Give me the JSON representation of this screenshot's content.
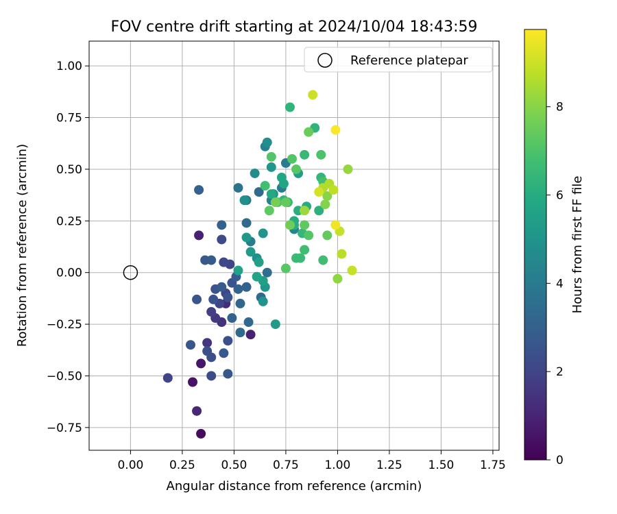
{
  "chart_data": {
    "type": "scatter",
    "title": "FOV centre drift starting at 2024/10/04 18:43:59",
    "xlabel": "Angular distance from reference (arcmin)",
    "ylabel": "Rotation from reference (arcmin)",
    "xlim": [
      -0.2,
      1.78
    ],
    "ylim": [
      -0.86,
      1.12
    ],
    "xticks": [
      0.0,
      0.25,
      0.5,
      0.75,
      1.0,
      1.25,
      1.5,
      1.75
    ],
    "xtick_labels": [
      "0.00",
      "0.25",
      "0.50",
      "0.75",
      "1.00",
      "1.25",
      "1.50",
      "1.75"
    ],
    "yticks": [
      -0.75,
      -0.5,
      -0.25,
      0.0,
      0.25,
      0.5,
      0.75,
      1.0
    ],
    "ytick_labels": [
      "−0.75",
      "−0.50",
      "−0.25",
      "0.00",
      "0.25",
      "0.50",
      "0.75",
      "1.00"
    ],
    "grid": true,
    "legend_position": "top-right",
    "legend_label": "Reference platepar",
    "reference_point": {
      "x": 0.0,
      "y": 0.0
    },
    "colorbar": {
      "label": "Hours from first FF file",
      "colormap": "viridis",
      "range": [
        0,
        9.75
      ],
      "ticks": [
        0,
        2,
        4,
        6,
        8
      ],
      "tick_labels": [
        "0",
        "2",
        "4",
        "6",
        "8"
      ]
    },
    "points": [
      {
        "x": 0.34,
        "y": -0.78,
        "c": 0.3
      },
      {
        "x": 0.3,
        "y": -0.53,
        "c": 0.5
      },
      {
        "x": 0.34,
        "y": -0.44,
        "c": 0.6
      },
      {
        "x": 0.33,
        "y": 0.18,
        "c": 0.9
      },
      {
        "x": 0.58,
        "y": -0.3,
        "c": 0.9
      },
      {
        "x": 0.32,
        "y": -0.67,
        "c": 1.1
      },
      {
        "x": 0.46,
        "y": -0.15,
        "c": 1.2
      },
      {
        "x": 0.44,
        "y": -0.24,
        "c": 1.4
      },
      {
        "x": 0.37,
        "y": -0.34,
        "c": 1.5
      },
      {
        "x": 0.41,
        "y": -0.22,
        "c": 1.6
      },
      {
        "x": 0.39,
        "y": -0.19,
        "c": 1.8
      },
      {
        "x": 0.18,
        "y": -0.51,
        "c": 2.0
      },
      {
        "x": 0.43,
        "y": -0.15,
        "c": 2.0
      },
      {
        "x": 0.46,
        "y": -0.1,
        "c": 2.0
      },
      {
        "x": 0.48,
        "y": 0.04,
        "c": 2.0
      },
      {
        "x": 0.45,
        "y": 0.05,
        "c": 2.1
      },
      {
        "x": 0.44,
        "y": 0.16,
        "c": 2.2
      },
      {
        "x": 0.39,
        "y": -0.5,
        "c": 2.2
      },
      {
        "x": 0.39,
        "y": -0.41,
        "c": 2.3
      },
      {
        "x": 0.37,
        "y": -0.38,
        "c": 2.4
      },
      {
        "x": 0.47,
        "y": -0.33,
        "c": 2.4
      },
      {
        "x": 0.4,
        "y": -0.13,
        "c": 2.5
      },
      {
        "x": 0.41,
        "y": -0.08,
        "c": 2.5
      },
      {
        "x": 0.47,
        "y": -0.12,
        "c": 2.5
      },
      {
        "x": 0.49,
        "y": -0.05,
        "c": 2.5
      },
      {
        "x": 0.29,
        "y": -0.35,
        "c": 2.6
      },
      {
        "x": 0.32,
        "y": -0.13,
        "c": 2.6
      },
      {
        "x": 0.47,
        "y": -0.49,
        "c": 2.6
      },
      {
        "x": 0.45,
        "y": -0.39,
        "c": 2.7
      },
      {
        "x": 0.36,
        "y": 0.06,
        "c": 2.7
      },
      {
        "x": 0.39,
        "y": 0.06,
        "c": 2.8
      },
      {
        "x": 0.44,
        "y": -0.07,
        "c": 2.8
      },
      {
        "x": 0.51,
        "y": -0.02,
        "c": 2.9
      },
      {
        "x": 0.33,
        "y": 0.4,
        "c": 3.0
      },
      {
        "x": 0.44,
        "y": 0.23,
        "c": 3.0
      },
      {
        "x": 0.49,
        "y": -0.22,
        "c": 3.0
      },
      {
        "x": 0.52,
        "y": -0.08,
        "c": 3.1
      },
      {
        "x": 0.56,
        "y": -0.07,
        "c": 3.1
      },
      {
        "x": 0.53,
        "y": -0.15,
        "c": 3.2
      },
      {
        "x": 0.53,
        "y": -0.29,
        "c": 3.3
      },
      {
        "x": 0.57,
        "y": -0.24,
        "c": 3.3
      },
      {
        "x": 0.63,
        "y": -0.12,
        "c": 3.3
      },
      {
        "x": 0.56,
        "y": 0.24,
        "c": 3.4
      },
      {
        "x": 0.62,
        "y": 0.39,
        "c": 3.4
      },
      {
        "x": 0.66,
        "y": 0.0,
        "c": 3.5
      },
      {
        "x": 0.52,
        "y": 0.41,
        "c": 3.7
      },
      {
        "x": 0.56,
        "y": 0.35,
        "c": 3.9
      },
      {
        "x": 0.58,
        "y": 0.15,
        "c": 4.0
      },
      {
        "x": 0.75,
        "y": 0.53,
        "c": 4.0
      },
      {
        "x": 0.73,
        "y": 0.41,
        "c": 4.0
      },
      {
        "x": 0.65,
        "y": 0.61,
        "c": 4.3
      },
      {
        "x": 0.68,
        "y": 0.35,
        "c": 4.3
      },
      {
        "x": 0.79,
        "y": 0.21,
        "c": 4.4
      },
      {
        "x": 0.6,
        "y": 0.48,
        "c": 4.7
      },
      {
        "x": 0.55,
        "y": 0.35,
        "c": 4.8
      },
      {
        "x": 0.61,
        "y": 0.07,
        "c": 4.8
      },
      {
        "x": 0.66,
        "y": 0.63,
        "c": 4.8
      },
      {
        "x": 0.69,
        "y": 0.38,
        "c": 4.9
      },
      {
        "x": 0.64,
        "y": 0.19,
        "c": 5.0
      },
      {
        "x": 0.64,
        "y": -0.14,
        "c": 5.0
      },
      {
        "x": 0.65,
        "y": -0.07,
        "c": 5.1
      },
      {
        "x": 0.68,
        "y": 0.51,
        "c": 5.1
      },
      {
        "x": 0.56,
        "y": 0.17,
        "c": 5.2
      },
      {
        "x": 0.58,
        "y": 0.1,
        "c": 5.3
      },
      {
        "x": 0.7,
        "y": -0.25,
        "c": 5.3
      },
      {
        "x": 0.81,
        "y": 0.48,
        "c": 5.4
      },
      {
        "x": 0.62,
        "y": 0.05,
        "c": 5.5
      },
      {
        "x": 0.64,
        "y": -0.04,
        "c": 5.5
      },
      {
        "x": 0.61,
        "y": -0.02,
        "c": 5.6
      },
      {
        "x": 0.52,
        "y": 0.01,
        "c": 5.6
      },
      {
        "x": 0.74,
        "y": 0.43,
        "c": 5.7
      },
      {
        "x": 0.73,
        "y": 0.46,
        "c": 5.8
      },
      {
        "x": 0.68,
        "y": 0.38,
        "c": 5.9
      },
      {
        "x": 0.79,
        "y": 0.25,
        "c": 6.0
      },
      {
        "x": 0.85,
        "y": 0.32,
        "c": 6.0
      },
      {
        "x": 0.79,
        "y": 0.23,
        "c": 6.1
      },
      {
        "x": 0.81,
        "y": 0.3,
        "c": 6.1
      },
      {
        "x": 0.91,
        "y": 0.3,
        "c": 6.2
      },
      {
        "x": 0.74,
        "y": 0.35,
        "c": 6.3
      },
      {
        "x": 0.77,
        "y": 0.8,
        "c": 6.3
      },
      {
        "x": 0.89,
        "y": 0.7,
        "c": 6.3
      },
      {
        "x": 0.92,
        "y": 0.46,
        "c": 6.4
      },
      {
        "x": 0.83,
        "y": 0.19,
        "c": 6.4
      },
      {
        "x": 0.84,
        "y": 0.57,
        "c": 6.5
      },
      {
        "x": 0.76,
        "y": 0.34,
        "c": 6.5
      },
      {
        "x": 0.8,
        "y": 0.07,
        "c": 6.6
      },
      {
        "x": 0.82,
        "y": 0.07,
        "c": 6.6
      },
      {
        "x": 0.84,
        "y": 0.11,
        "c": 6.7
      },
      {
        "x": 0.93,
        "y": 0.06,
        "c": 6.7
      },
      {
        "x": 0.93,
        "y": 0.44,
        "c": 6.8
      },
      {
        "x": 0.65,
        "y": 0.42,
        "c": 6.8
      },
      {
        "x": 0.71,
        "y": 0.34,
        "c": 6.9
      },
      {
        "x": 0.92,
        "y": 0.57,
        "c": 7.0
      },
      {
        "x": 0.68,
        "y": 0.56,
        "c": 7.1
      },
      {
        "x": 0.78,
        "y": 0.55,
        "c": 7.1
      },
      {
        "x": 0.86,
        "y": 0.18,
        "c": 7.1
      },
      {
        "x": 0.75,
        "y": 0.02,
        "c": 7.2
      },
      {
        "x": 0.8,
        "y": 0.5,
        "c": 7.2
      },
      {
        "x": 0.84,
        "y": 0.23,
        "c": 7.3
      },
      {
        "x": 0.67,
        "y": 0.3,
        "c": 7.3
      },
      {
        "x": 0.75,
        "y": 0.34,
        "c": 7.4
      },
      {
        "x": 0.95,
        "y": 0.18,
        "c": 7.4
      },
      {
        "x": 0.86,
        "y": 0.68,
        "c": 7.5
      },
      {
        "x": 0.77,
        "y": 0.23,
        "c": 7.6
      },
      {
        "x": 0.7,
        "y": 0.34,
        "c": 7.7
      },
      {
        "x": 0.94,
        "y": 0.33,
        "c": 7.9
      },
      {
        "x": 0.95,
        "y": 0.37,
        "c": 8.0
      },
      {
        "x": 1.0,
        "y": -0.03,
        "c": 8.1
      },
      {
        "x": 1.05,
        "y": 0.5,
        "c": 8.2
      },
      {
        "x": 0.84,
        "y": 0.3,
        "c": 8.3
      },
      {
        "x": 0.93,
        "y": 0.41,
        "c": 8.6
      },
      {
        "x": 0.96,
        "y": 0.43,
        "c": 8.6
      },
      {
        "x": 1.02,
        "y": 0.09,
        "c": 8.7
      },
      {
        "x": 0.98,
        "y": 0.4,
        "c": 8.8
      },
      {
        "x": 1.01,
        "y": 0.2,
        "c": 8.9
      },
      {
        "x": 1.07,
        "y": 0.01,
        "c": 8.9
      },
      {
        "x": 0.88,
        "y": 0.86,
        "c": 9.0
      },
      {
        "x": 0.91,
        "y": 0.39,
        "c": 9.1
      },
      {
        "x": 0.99,
        "y": 0.23,
        "c": 9.5
      },
      {
        "x": 0.99,
        "y": 0.69,
        "c": 9.7
      }
    ]
  }
}
